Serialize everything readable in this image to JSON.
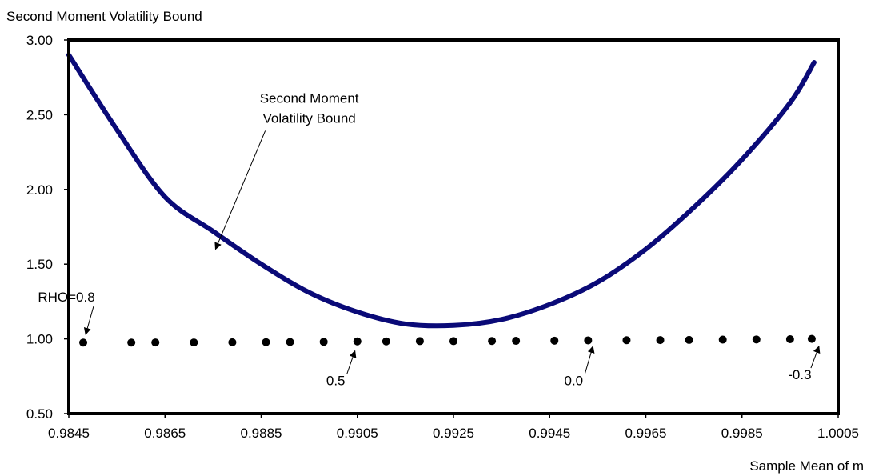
{
  "chart_data": {
    "type": "line",
    "title": "Second Moment Volatility Bound",
    "xlabel": "Sample Mean of m",
    "ylabel": "",
    "xlim": [
      0.9845,
      1.0005
    ],
    "ylim": [
      0.5,
      3.0
    ],
    "x_ticks": [
      "0.9845",
      "0.9865",
      "0.9885",
      "0.9905",
      "0.9925",
      "0.9945",
      "0.9965",
      "0.9985",
      "1.0005"
    ],
    "y_ticks": [
      "0.50",
      "1.00",
      "1.50",
      "2.00",
      "2.50",
      "3.00"
    ],
    "grid": false,
    "legend": "none",
    "colors": {
      "bound": "#0a0a78",
      "points": "#000000"
    },
    "series": [
      {
        "style": "line",
        "x": [
          0.9845,
          0.9855,
          0.9865,
          0.9875,
          0.9885,
          0.9895,
          0.9905,
          0.9915,
          0.9925,
          0.9935,
          0.9945,
          0.9955,
          0.9965,
          0.9975,
          0.9985,
          0.9995,
          1.0
        ],
        "y": [
          2.9,
          2.4,
          1.95,
          1.72,
          1.5,
          1.31,
          1.18,
          1.1,
          1.09,
          1.13,
          1.23,
          1.38,
          1.6,
          1.88,
          2.2,
          2.58,
          2.85
        ]
      },
      {
        "style": "scatter",
        "x": [
          0.9848,
          0.9858,
          0.9863,
          0.9871,
          0.9879,
          0.9886,
          0.9891,
          0.9898,
          0.9905,
          0.9911,
          0.9918,
          0.9925,
          0.9933,
          0.9938,
          0.9946,
          0.9953,
          0.9961,
          0.9968,
          0.9974,
          0.9981,
          0.9988,
          0.9995,
          0.99995
        ],
        "y": [
          0.975,
          0.975,
          0.976,
          0.976,
          0.977,
          0.978,
          0.979,
          0.98,
          0.983,
          0.983,
          0.985,
          0.985,
          0.986,
          0.987,
          0.988,
          0.99,
          0.991,
          0.992,
          0.993,
          0.995,
          0.996,
          0.998,
          1.0
        ]
      }
    ],
    "annotations": [
      {
        "text": "Second Moment",
        "text2": "Volatility Bound",
        "tx": 0.9895,
        "ty": 2.58,
        "ax": 0.98755,
        "ay": 1.6
      },
      {
        "text": "RHO=0.8",
        "tx": 0.98445,
        "ty": 1.25,
        "ax": 0.98485,
        "ay": 1.03
      },
      {
        "text": "0.5",
        "tx": 0.99005,
        "ty": 0.69,
        "ax": 0.99045,
        "ay": 0.92
      },
      {
        "text": "0.0",
        "tx": 0.995,
        "ty": 0.69,
        "ax": 0.9954,
        "ay": 0.95
      },
      {
        "text": "-0.3",
        "tx": 0.9997,
        "ty": 0.73,
        "ax": 1.0001,
        "ay": 0.95
      }
    ]
  }
}
